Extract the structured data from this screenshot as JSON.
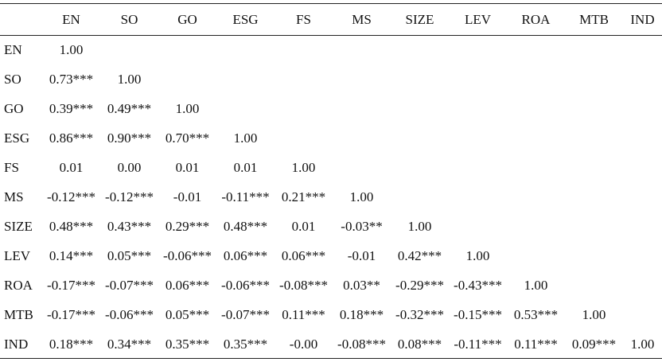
{
  "table": {
    "columns": [
      "EN",
      "SO",
      "GO",
      "ESG",
      "FS",
      "MS",
      "SIZE",
      "LEV",
      "ROA",
      "MTB",
      "IND"
    ],
    "rows": [
      {
        "label": "EN",
        "cells": [
          "1.00",
          "",
          "",
          "",
          "",
          "",
          "",
          "",
          "",
          "",
          ""
        ]
      },
      {
        "label": "SO",
        "cells": [
          "0.73***",
          "1.00",
          "",
          "",
          "",
          "",
          "",
          "",
          "",
          "",
          ""
        ]
      },
      {
        "label": "GO",
        "cells": [
          "0.39***",
          "0.49***",
          "1.00",
          "",
          "",
          "",
          "",
          "",
          "",
          "",
          ""
        ]
      },
      {
        "label": "ESG",
        "cells": [
          "0.86***",
          "0.90***",
          "0.70***",
          "1.00",
          "",
          "",
          "",
          "",
          "",
          "",
          ""
        ]
      },
      {
        "label": "FS",
        "cells": [
          "0.01",
          "0.00",
          "0.01",
          "0.01",
          "1.00",
          "",
          "",
          "",
          "",
          "",
          ""
        ]
      },
      {
        "label": "MS",
        "cells": [
          "-0.12***",
          "-0.12***",
          "-0.01",
          "-0.11***",
          "0.21***",
          "1.00",
          "",
          "",
          "",
          "",
          ""
        ]
      },
      {
        "label": "SIZE",
        "cells": [
          "0.48***",
          "0.43***",
          "0.29***",
          "0.48***",
          "0.01",
          "-0.03**",
          "1.00",
          "",
          "",
          "",
          ""
        ]
      },
      {
        "label": "LEV",
        "cells": [
          "0.14***",
          "0.05***",
          "-0.06***",
          "0.06***",
          "0.06***",
          "-0.01",
          "0.42***",
          "1.00",
          "",
          "",
          ""
        ]
      },
      {
        "label": "ROA",
        "cells": [
          "-0.17***",
          "-0.07***",
          "0.06***",
          "-0.06***",
          "-0.08***",
          "0.03**",
          "-0.29***",
          "-0.43***",
          "1.00",
          "",
          ""
        ]
      },
      {
        "label": "MTB",
        "cells": [
          "-0.17***",
          "-0.06***",
          "0.05***",
          "-0.07***",
          "0.11***",
          "0.18***",
          "-0.32***",
          "-0.15***",
          "0.53***",
          "1.00",
          ""
        ]
      },
      {
        "label": "IND",
        "cells": [
          "0.18***",
          "0.34***",
          "0.35***",
          "0.35***",
          "-0.00",
          "-0.08***",
          "0.08***",
          "-0.11***",
          "0.11***",
          "0.09***",
          "1.00"
        ]
      }
    ]
  }
}
